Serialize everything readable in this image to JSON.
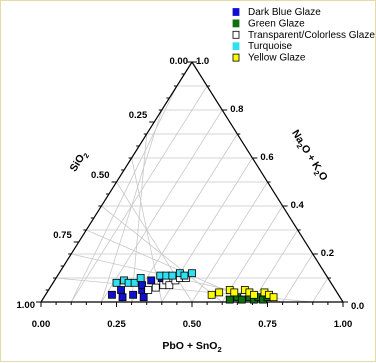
{
  "colors": {
    "frame": "#e6dba3",
    "grid": "#c8c8c8",
    "axis": "#000000"
  },
  "chart_data": {
    "type": "scatter",
    "subtype": "ternary",
    "vertices": {
      "top": "SiO2",
      "bottom_left": "SiO2 = 1.00",
      "bottom_right": "PbO + SnO2 = 1.00"
    },
    "axes": {
      "bottom": {
        "label": "PbO + SnO",
        "label_subscript": "2",
        "variable": "PbO + SnO2",
        "ticks": [
          "0.00",
          "0.25",
          "0.50",
          "0.75",
          "1.00"
        ]
      },
      "left": {
        "label": "SiO",
        "label_subscript": "2",
        "variable": "SiO2",
        "ticks": [
          "0.00",
          "0.25",
          "0.50",
          "0.75",
          "1.00"
        ]
      },
      "right": {
        "label_parts": [
          {
            "t": "Na",
            "sub": false
          },
          {
            "t": "2",
            "sub": true
          },
          {
            "t": "O + K",
            "sub": false
          },
          {
            "t": "2",
            "sub": true
          },
          {
            "t": "O",
            "sub": false
          }
        ],
        "variable": "Na2O + K2O",
        "ticks": [
          "1.0",
          "0.8",
          "0.6",
          "0.4",
          "0.2",
          "0.0"
        ]
      }
    },
    "grid": true,
    "legend_position": "top-right",
    "series": [
      {
        "name": "Dark Blue Glaze",
        "color": "#1010d0",
        "marker": "filled-square",
        "points": [
          {
            "pbo_sno2": 0.22,
            "na2o_k2o": 0.03
          },
          {
            "pbo_sno2": 0.24,
            "na2o_k2o": 0.05
          },
          {
            "pbo_sno2": 0.26,
            "na2o_k2o": 0.02
          },
          {
            "pbo_sno2": 0.29,
            "na2o_k2o": 0.03
          },
          {
            "pbo_sno2": 0.31,
            "na2o_k2o": 0.05
          },
          {
            "pbo_sno2": 0.3,
            "na2o_k2o": 0.07
          },
          {
            "pbo_sno2": 0.32,
            "na2o_k2o": 0.09
          },
          {
            "pbo_sno2": 0.33,
            "na2o_k2o": 0.02
          },
          {
            "pbo_sno2": 0.35,
            "na2o_k2o": 0.1
          }
        ]
      },
      {
        "name": "Green Glaze",
        "color": "#107010",
        "marker": "filled-square",
        "points": [
          {
            "pbo_sno2": 0.62,
            "na2o_k2o": 0.01
          },
          {
            "pbo_sno2": 0.64,
            "na2o_k2o": 0.02
          },
          {
            "pbo_sno2": 0.66,
            "na2o_k2o": 0.01
          },
          {
            "pbo_sno2": 0.68,
            "na2o_k2o": 0.02
          },
          {
            "pbo_sno2": 0.7,
            "na2o_k2o": 0.01
          },
          {
            "pbo_sno2": 0.71,
            "na2o_k2o": 0.02
          },
          {
            "pbo_sno2": 0.73,
            "na2o_k2o": 0.01
          },
          {
            "pbo_sno2": 0.74,
            "na2o_k2o": 0.02
          }
        ]
      },
      {
        "name": "Transparent/Colorless Glaze",
        "color": "#ffffff",
        "stroke": "#000000",
        "marker": "open-square",
        "points": [
          {
            "pbo_sno2": 0.33,
            "na2o_k2o": 0.05
          },
          {
            "pbo_sno2": 0.35,
            "na2o_k2o": 0.06
          },
          {
            "pbo_sno2": 0.37,
            "na2o_k2o": 0.07
          },
          {
            "pbo_sno2": 0.37,
            "na2o_k2o": 0.09
          },
          {
            "pbo_sno2": 0.39,
            "na2o_k2o": 0.07
          },
          {
            "pbo_sno2": 0.4,
            "na2o_k2o": 0.09
          },
          {
            "pbo_sno2": 0.41,
            "na2o_k2o": 0.1
          },
          {
            "pbo_sno2": 0.43,
            "na2o_k2o": 0.1
          }
        ]
      },
      {
        "name": "Turquoise",
        "color": "#30e0f0",
        "marker": "filled-square",
        "points": [
          {
            "pbo_sno2": 0.21,
            "na2o_k2o": 0.08
          },
          {
            "pbo_sno2": 0.23,
            "na2o_k2o": 0.09
          },
          {
            "pbo_sno2": 0.25,
            "na2o_k2o": 0.08
          },
          {
            "pbo_sno2": 0.27,
            "na2o_k2o": 0.08
          },
          {
            "pbo_sno2": 0.28,
            "na2o_k2o": 0.1
          },
          {
            "pbo_sno2": 0.34,
            "na2o_k2o": 0.11
          },
          {
            "pbo_sno2": 0.36,
            "na2o_k2o": 0.11
          },
          {
            "pbo_sno2": 0.38,
            "na2o_k2o": 0.11
          },
          {
            "pbo_sno2": 0.4,
            "na2o_k2o": 0.12
          },
          {
            "pbo_sno2": 0.42,
            "na2o_k2o": 0.11
          },
          {
            "pbo_sno2": 0.44,
            "na2o_k2o": 0.12
          }
        ]
      },
      {
        "name": "Yellow Glaze",
        "color": "#ffff00",
        "stroke": "#000000",
        "marker": "filled-square",
        "points": [
          {
            "pbo_sno2": 0.55,
            "na2o_k2o": 0.03
          },
          {
            "pbo_sno2": 0.57,
            "na2o_k2o": 0.04
          },
          {
            "pbo_sno2": 0.6,
            "na2o_k2o": 0.05
          },
          {
            "pbo_sno2": 0.62,
            "na2o_k2o": 0.04
          },
          {
            "pbo_sno2": 0.65,
            "na2o_k2o": 0.05
          },
          {
            "pbo_sno2": 0.67,
            "na2o_k2o": 0.04
          },
          {
            "pbo_sno2": 0.69,
            "na2o_k2o": 0.03
          },
          {
            "pbo_sno2": 0.72,
            "na2o_k2o": 0.04
          },
          {
            "pbo_sno2": 0.74,
            "na2o_k2o": 0.03
          },
          {
            "pbo_sno2": 0.76,
            "na2o_k2o": 0.02
          }
        ]
      }
    ]
  }
}
